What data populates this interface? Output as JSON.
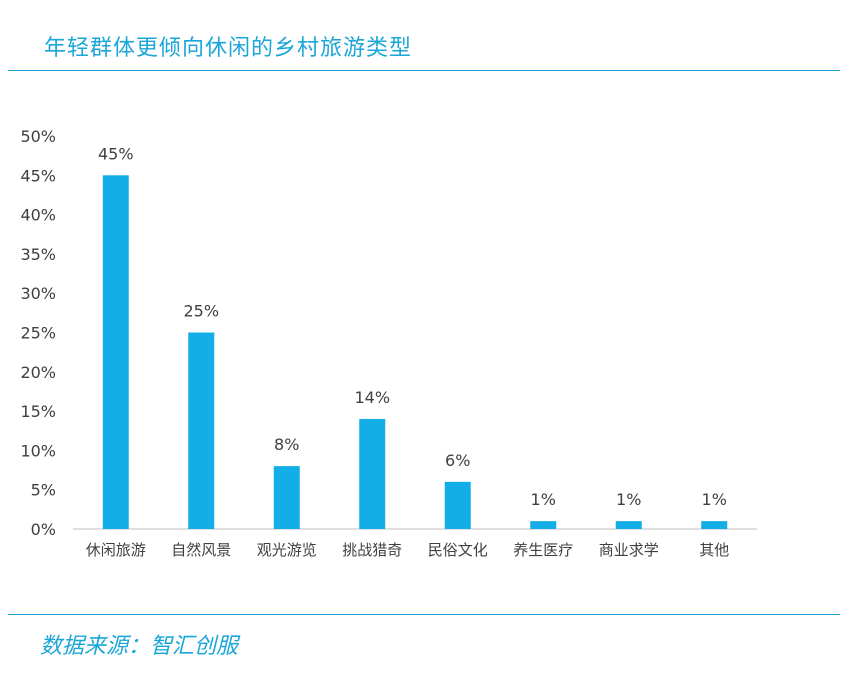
{
  "header": {
    "title": "年轻群体更倾向休闲的乡村旅游类型"
  },
  "footer": {
    "source_label": "数据来源：",
    "source_name": "智汇创服"
  },
  "colors": {
    "accent": "#1aa6d8",
    "bar": "#13aee8",
    "axis_text": "#404040"
  },
  "chart_data": {
    "type": "bar",
    "title": "",
    "xlabel": "",
    "ylabel": "",
    "categories": [
      "休闲旅游",
      "自然风景",
      "观光游览",
      "挑战猎奇",
      "民俗文化",
      "养生医疗",
      "商业求学",
      "其他"
    ],
    "values": [
      45,
      25,
      8,
      14,
      6,
      1,
      1,
      1
    ],
    "value_labels": [
      "45%",
      "25%",
      "8%",
      "14%",
      "6%",
      "1%",
      "1%",
      "1%"
    ],
    "ylim": [
      0,
      50
    ],
    "yticks": [
      0,
      5,
      10,
      15,
      20,
      25,
      30,
      35,
      40,
      45,
      50
    ],
    "ytick_labels": [
      "0%",
      "5%",
      "10%",
      "15%",
      "20%",
      "25%",
      "30%",
      "35%",
      "40%",
      "45%",
      "50%"
    ],
    "grid": false,
    "legend": "none"
  }
}
